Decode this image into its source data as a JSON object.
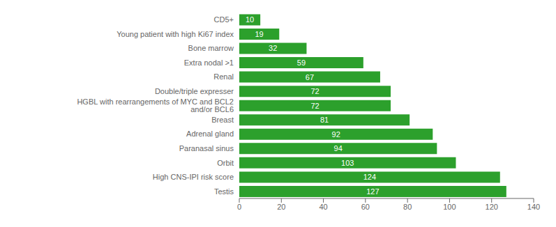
{
  "chart_data": {
    "type": "bar",
    "orientation": "horizontal",
    "categories": [
      "Testis",
      "High CNS-IPI risk score",
      "Orbit",
      "Paranasal sinus",
      "Adrenal gland",
      "Breast",
      "HGBL with rearrangements of MYC and BCL2 and/or BCL6",
      "Double/triple expresser",
      "Renal",
      "Extra nodal >1",
      "Bone marrow",
      "Young patient with high Ki67 index",
      "CD5+"
    ],
    "values": [
      127,
      124,
      103,
      94,
      92,
      81,
      72,
      72,
      67,
      59,
      32,
      19,
      10
    ],
    "color": "#2ca02c",
    "xlim": [
      0,
      140
    ],
    "xticks": [
      0,
      20,
      40,
      60,
      80,
      100,
      120,
      140
    ],
    "grid": false,
    "data_labels": true
  }
}
